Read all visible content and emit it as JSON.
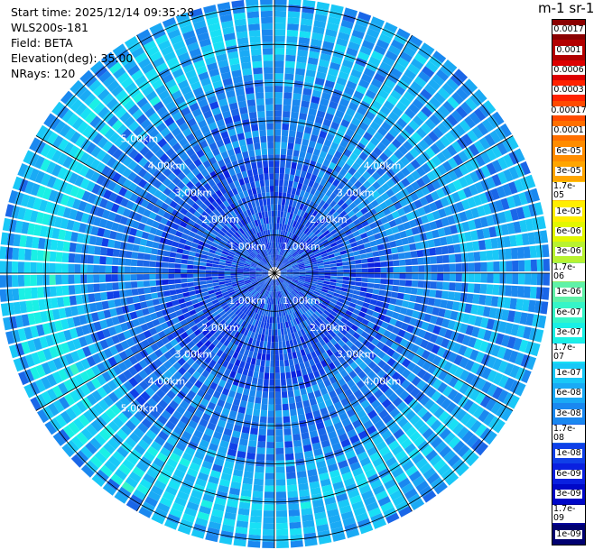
{
  "header": {
    "start_time": "Start time: 2025/12/14 09:35:28",
    "instrument": "WLS200s-181",
    "field": "Field: BETA",
    "elevation": "Elevation(deg): 35.00",
    "nrays": "NRays: 120"
  },
  "colorbar": {
    "unit_label": "m-1 sr-1",
    "entries": [
      {
        "label": "0.0017",
        "color": "#8b0000"
      },
      {
        "label": "0.001",
        "color": "#b20000"
      },
      {
        "label": "0.0006",
        "color": "#dd0000"
      },
      {
        "label": "0.0003",
        "color": "#ff2200"
      },
      {
        "label": "0.00017",
        "color": "#ff4a00"
      },
      {
        "label": "0.0001",
        "color": "#ff6f00"
      },
      {
        "label": "6e-05",
        "color": "#ff8c00"
      },
      {
        "label": "3e-05",
        "color": "#ffa500"
      },
      {
        "label": "1.7e-05",
        "color": "#ffc800"
      },
      {
        "label": "1e-05",
        "color": "#ffee00"
      },
      {
        "label": "6e-06",
        "color": "#e2f700"
      },
      {
        "label": "3e-06",
        "color": "#b8f230"
      },
      {
        "label": "1.7e-06",
        "color": "#8eea6a"
      },
      {
        "label": "1e-06",
        "color": "#5ff2a8"
      },
      {
        "label": "6e-07",
        "color": "#35f5c8"
      },
      {
        "label": "3e-07",
        "color": "#1af0e5"
      },
      {
        "label": "1.7e-07",
        "color": "#18e0f5"
      },
      {
        "label": "1e-07",
        "color": "#19c8f7"
      },
      {
        "label": "6e-08",
        "color": "#1aaaf5"
      },
      {
        "label": "3e-08",
        "color": "#1a88f0"
      },
      {
        "label": "1.7e-08",
        "color": "#1a66e8"
      },
      {
        "label": "1e-08",
        "color": "#1040e8"
      },
      {
        "label": "6e-09",
        "color": "#0a20e0"
      },
      {
        "label": "3e-09",
        "color": "#0008c8"
      },
      {
        "label": "1.7e-09",
        "color": "#00009a"
      },
      {
        "label": "1e-09",
        "color": "#000070"
      }
    ]
  },
  "range_labels": {
    "ring1": "1.00km",
    "ring2": "2.00km",
    "ring3": "3.00km",
    "ring4": "4.00km",
    "ring5": "5.00km"
  }
}
